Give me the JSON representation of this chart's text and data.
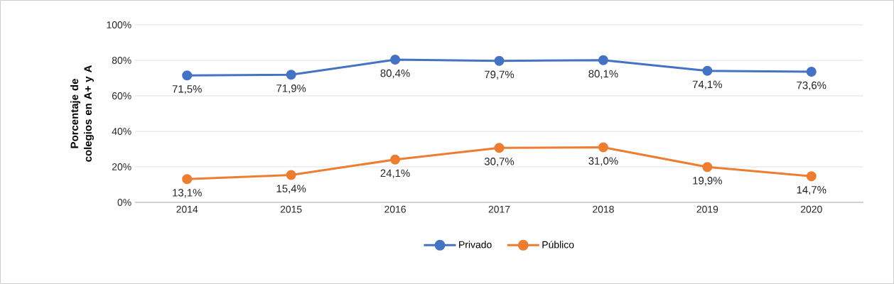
{
  "chart_data": {
    "type": "line",
    "ylabel": "Porcentaje de colegios en A+ y A",
    "categories": [
      "2014",
      "2015",
      "2016",
      "2017",
      "2018",
      "2019",
      "2020"
    ],
    "series": [
      {
        "name": "Privado",
        "color": "#4472c4",
        "values": [
          71.5,
          71.9,
          80.4,
          79.7,
          80.1,
          74.1,
          73.6
        ],
        "value_labels": [
          "71,5%",
          "71,9%",
          "80,4%",
          "79,7%",
          "80,1%",
          "74,1%",
          "73,6%"
        ]
      },
      {
        "name": "Público",
        "color": "#ed7d31",
        "values": [
          13.1,
          15.4,
          24.1,
          30.7,
          31.0,
          19.9,
          14.7
        ],
        "value_labels": [
          "13,1%",
          "15,4%",
          "24,1%",
          "30,7%",
          "31,0%",
          "19,9%",
          "14,7%"
        ]
      }
    ],
    "ylim": [
      0,
      100
    ],
    "yticks": [
      {
        "value": 0,
        "label": "0%"
      },
      {
        "value": 20,
        "label": "20%"
      },
      {
        "value": 40,
        "label": "40%"
      },
      {
        "value": 60,
        "label": "60%"
      },
      {
        "value": 80,
        "label": "80%"
      },
      {
        "value": 100,
        "label": "100%"
      }
    ],
    "grid": "y",
    "legend": "bottom",
    "marker": "circle",
    "line_style": "solid"
  }
}
